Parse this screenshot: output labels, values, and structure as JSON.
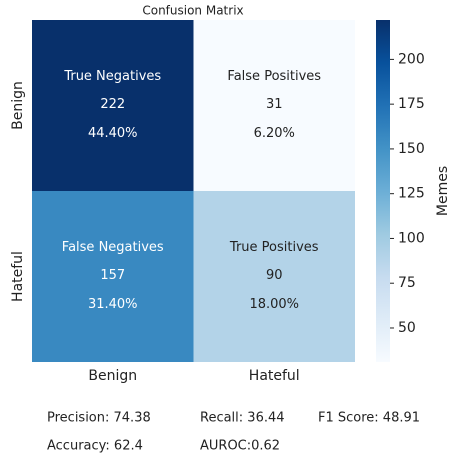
{
  "chart_data": {
    "type": "heatmap",
    "title": "Confusion Matrix",
    "x_categories": [
      "Benign",
      "Hateful"
    ],
    "y_categories": [
      "Benign",
      "Hateful"
    ],
    "cell_names": [
      [
        "True Negatives",
        "False Positives"
      ],
      [
        "False Negatives",
        "True Positives"
      ]
    ],
    "values": [
      [
        222,
        31
      ],
      [
        157,
        90
      ]
    ],
    "percent_labels": [
      [
        "44.40%",
        "6.20%"
      ],
      [
        "31.40%",
        "18.00%"
      ]
    ],
    "colormap": "Blues",
    "colorbar": {
      "label": "Memes",
      "lim": [
        31,
        222
      ],
      "ticks": [
        50,
        75,
        100,
        125,
        150,
        175,
        200
      ]
    },
    "metrics": [
      [
        "Precision: 74.38",
        "Recall: 36.44",
        "F1 Score: 48.91"
      ],
      [
        "Accuracy: 62.4",
        "AUROC:0.62"
      ]
    ]
  }
}
